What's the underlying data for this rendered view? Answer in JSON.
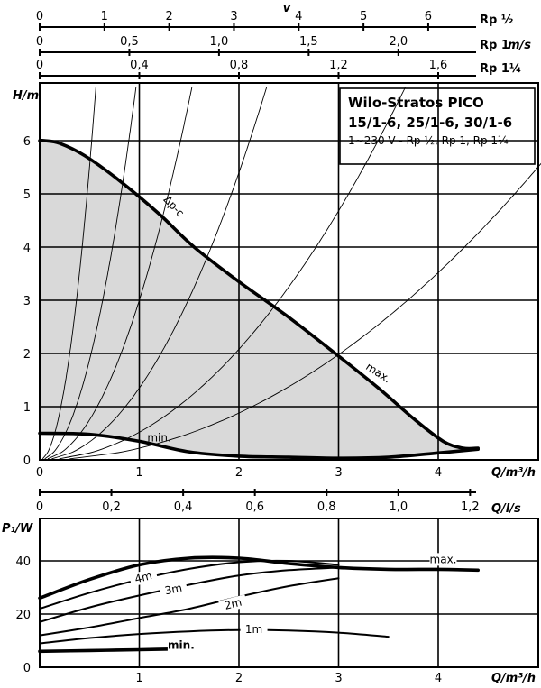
{
  "chart_data": [
    {
      "type": "line",
      "title": "Wilo-Stratos PICO",
      "subtitle": "15/1-6, 25/1-6, 30/1-6",
      "note": "1~230 V - Rp ½, Rp 1, Rp 1¼",
      "xlabel": "Q/m³/h",
      "ylabel": "H/m",
      "xlim": [
        0,
        5
      ],
      "ylim": [
        0,
        7
      ],
      "xticks": [
        "0",
        "1",
        "2",
        "3",
        "4"
      ],
      "yticks": [
        "0",
        "1",
        "2",
        "3",
        "4",
        "5",
        "6"
      ],
      "grid": true,
      "velocity_axes": [
        {
          "label": "v",
          "pipe": "Rp ½",
          "ticks": [
            "0",
            "1",
            "2",
            "3",
            "4",
            "5",
            "6"
          ],
          "tick_q": [
            0,
            0.65,
            1.3,
            1.95,
            2.6,
            3.25,
            3.9
          ]
        },
        {
          "label": "m/s",
          "pipe": "Rp 1",
          "ticks": [
            "0",
            "0,5",
            "1,0",
            "1,5",
            "2,0"
          ],
          "tick_q": [
            0,
            0.9,
            1.8,
            2.7,
            3.6
          ]
        },
        {
          "label": "",
          "pipe": "Rp 1¼",
          "ticks": [
            "0",
            "0,4",
            "0,8",
            "1,2",
            "1,6"
          ],
          "tick_q": [
            0,
            1.0,
            2.0,
            3.0,
            4.0
          ]
        }
      ],
      "series": [
        {
          "name": "Δp-c",
          "x": [
            0,
            0.05,
            0.2,
            0.45,
            0.8,
            1.2,
            1.55,
            2.0,
            2.5,
            3.0,
            3.4,
            3.75,
            4.05,
            4.25,
            4.4
          ],
          "y": [
            6.0,
            6.0,
            5.95,
            5.72,
            5.25,
            4.62,
            4.0,
            3.35,
            2.68,
            1.95,
            1.35,
            0.78,
            0.35,
            0.22,
            0.22
          ]
        },
        {
          "name": "max.",
          "x": [
            3.4,
            3.75,
            4.05,
            4.25,
            4.4
          ],
          "y": [
            1.35,
            0.78,
            0.35,
            0.22,
            0.22
          ]
        },
        {
          "name": "min.",
          "x": [
            0,
            0.5,
            1.0,
            1.5,
            2.0,
            2.5,
            3.0,
            3.5,
            4.0,
            4.4
          ],
          "y": [
            0.5,
            0.48,
            0.35,
            0.15,
            0.07,
            0.05,
            0.03,
            0.05,
            0.13,
            0.2
          ]
        }
      ]
    },
    {
      "type": "line",
      "xlabel": "Q/m³/h",
      "ylabel": "P₁/W",
      "xlim": [
        0,
        5
      ],
      "ylim": [
        0,
        45
      ],
      "xticks": [
        "0",
        "1",
        "2",
        "3",
        "4"
      ],
      "yticks": [
        "0",
        "20",
        "40"
      ],
      "grid": true,
      "flow_axis": {
        "label": "Q/l/s",
        "ticks": [
          "0",
          "0,2",
          "0,4",
          "0,6",
          "0,8",
          "1,0",
          "1,2"
        ],
        "tick_q": [
          0,
          0.72,
          1.44,
          2.16,
          2.88,
          3.6,
          4.32
        ]
      },
      "series": [
        {
          "name": "max.",
          "x": [
            0,
            0.5,
            1.0,
            1.5,
            2.0,
            2.5,
            3.0,
            3.5,
            4.0,
            4.4
          ],
          "y": [
            26,
            33,
            38.5,
            41,
            41,
            39,
            37.5,
            36.8,
            36.8,
            36.5
          ]
        },
        {
          "name": "4m",
          "x": [
            0,
            0.5,
            1.0,
            1.5,
            2.0,
            2.5,
            3.0
          ],
          "y": [
            22,
            28,
            33,
            37,
            39.5,
            40,
            38.5
          ]
        },
        {
          "name": "3m",
          "x": [
            0,
            0.5,
            1.0,
            1.5,
            2.0,
            2.5,
            3.0
          ],
          "y": [
            17,
            22.5,
            27,
            31,
            34.5,
            36.5,
            37.5
          ]
        },
        {
          "name": "2m",
          "x": [
            0,
            0.5,
            1.0,
            1.5,
            2.0,
            2.5,
            3.0
          ],
          "y": [
            12,
            15,
            18.5,
            22,
            26.5,
            30.5,
            33.5
          ]
        },
        {
          "name": "1m",
          "x": [
            0,
            0.5,
            1.0,
            1.5,
            2.0,
            2.5,
            3.0,
            3.5
          ],
          "y": [
            9,
            11,
            12.5,
            13.5,
            14,
            13.8,
            13,
            11.5
          ]
        },
        {
          "name": "min.",
          "x": [
            0,
            0.5,
            1.0,
            1.5
          ],
          "y": [
            6,
            6.3,
            6.6,
            7
          ]
        }
      ]
    }
  ]
}
